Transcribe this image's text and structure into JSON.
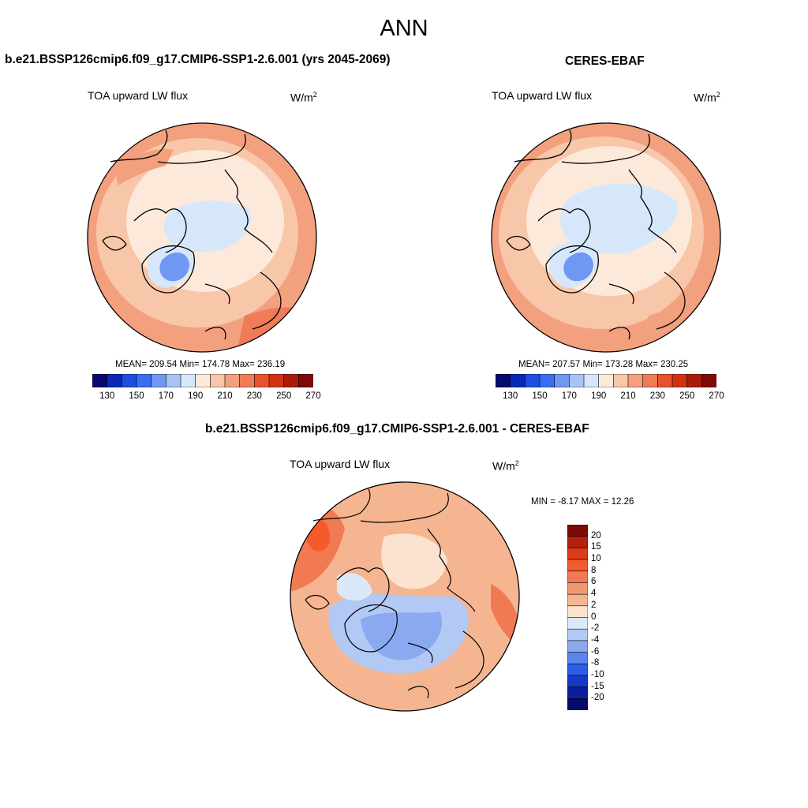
{
  "title": "ANN",
  "panels": [
    {
      "title": "b.e21.BSSP126cmip6.f09_g17.CMIP6-SSP1-2.6.001 (yrs 2045-2069)",
      "variable": "TOA upward LW flux",
      "units": "W/m",
      "units_exp": "2",
      "stats": "MEAN= 209.54  Min= 174.78  Max= 236.19"
    },
    {
      "title": "CERES-EBAF",
      "variable": "TOA upward LW flux",
      "units": "W/m",
      "units_exp": "2",
      "stats": "MEAN= 207.57  Min= 173.28  Max= 230.25"
    },
    {
      "title": "b.e21.BSSP126cmip6.f09_g17.CMIP6-SSP1-2.6.001 - CERES-EBAF",
      "variable": "TOA upward LW flux",
      "units": "W/m",
      "units_exp": "2",
      "stats": "MIN =  -8.17 MAX =  12.26"
    }
  ],
  "colorbar_abs": {
    "labels": [
      "130",
      "150",
      "170",
      "190",
      "210",
      "230",
      "250",
      "270"
    ],
    "colors": [
      "#050a6e",
      "#0a2ab4",
      "#1c4ee0",
      "#3a6ef0",
      "#6f98f2",
      "#a8c3f5",
      "#d6e7fb",
      "#fce9da",
      "#f8c6a8",
      "#f3a07e",
      "#ef7b57",
      "#e8532e",
      "#d23214",
      "#a81c0c",
      "#7d0a04"
    ]
  },
  "colorbar_diff": {
    "labels": [
      "20",
      "15",
      "10",
      "8",
      "6",
      "4",
      "2",
      "0",
      "-2",
      "-4",
      "-6",
      "-8",
      "-10",
      "-15",
      "-20"
    ],
    "colors": [
      "#7d0a04",
      "#b51f0e",
      "#dd3a18",
      "#f45a2c",
      "#f17a52",
      "#f2986f",
      "#f6b591",
      "#fce3d0",
      "#dbe8fa",
      "#b2c8f5",
      "#8aa9f0",
      "#5b84ec",
      "#2d5ce6",
      "#143ac8",
      "#0b1f9e",
      "#050a6e"
    ]
  }
}
